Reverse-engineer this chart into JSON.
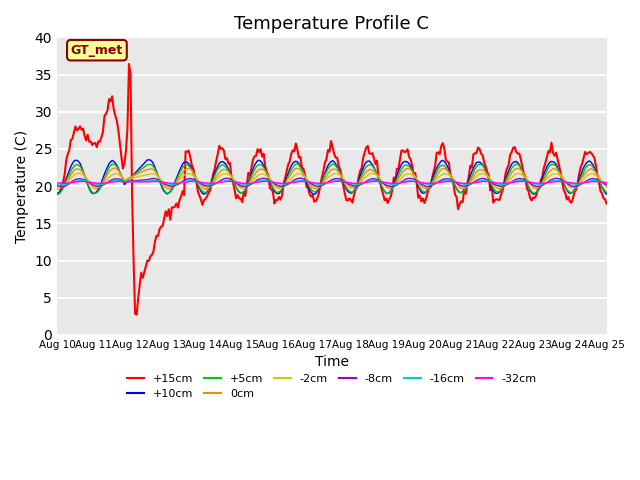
{
  "title": "Temperature Profile C",
  "xlabel": "Time",
  "ylabel": "Temperature (C)",
  "ylim": [
    0,
    40
  ],
  "x_tick_labels": [
    "Aug 10",
    "Aug 11",
    "Aug 12",
    "Aug 13",
    "Aug 14",
    "Aug 15",
    "Aug 16",
    "Aug 17",
    "Aug 18",
    "Aug 19",
    "Aug 20",
    "Aug 21",
    "Aug 22",
    "Aug 23",
    "Aug 24",
    "Aug 25"
  ],
  "annotation": "GT_met",
  "annotation_color": "#8B0000",
  "annotation_bg": "#FFFF99",
  "background_color": "#E8E8E8",
  "series": [
    {
      "label": "+15cm",
      "color": "#FF0000",
      "lw": 1.5
    },
    {
      "label": "+10cm",
      "color": "#0000FF",
      "lw": 1.0
    },
    {
      "label": "+5cm",
      "color": "#00CC00",
      "lw": 1.0
    },
    {
      "label": "0cm",
      "color": "#FF8800",
      "lw": 1.0
    },
    {
      "label": "-2cm",
      "color": "#CCCC00",
      "lw": 1.0
    },
    {
      "label": "-8cm",
      "color": "#9900CC",
      "lw": 1.0
    },
    {
      "label": "-16cm",
      "color": "#00CCCC",
      "lw": 1.0
    },
    {
      "label": "-32cm",
      "color": "#FF00FF",
      "lw": 1.0
    }
  ],
  "title_fontsize": 13,
  "axis_fontsize": 10
}
